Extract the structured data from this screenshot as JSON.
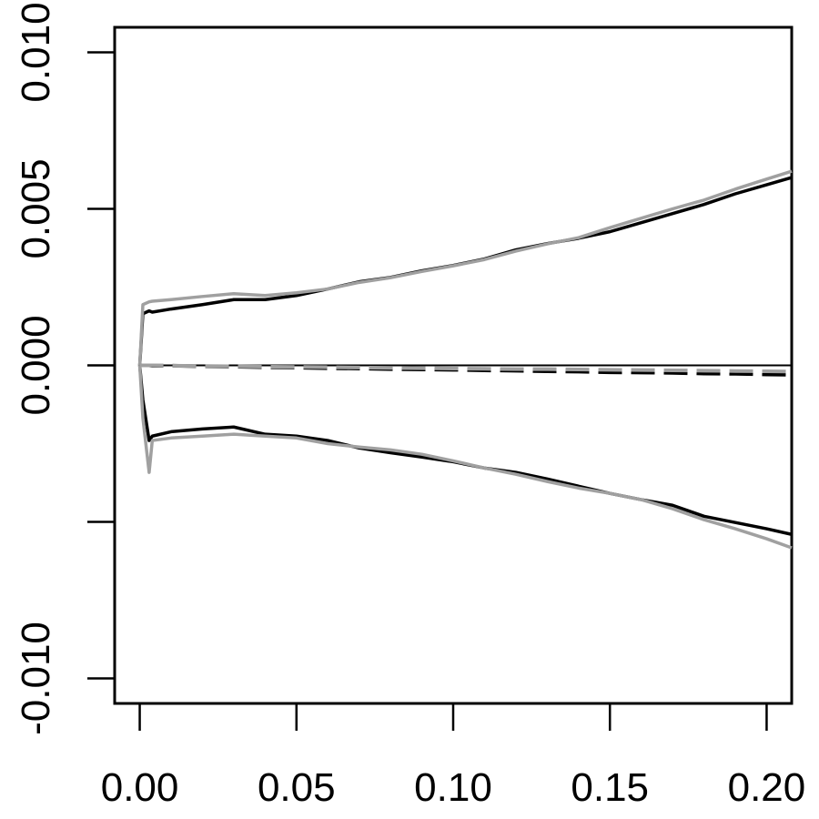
{
  "chart_data": {
    "type": "line",
    "x": [
      0,
      0.001,
      0.003,
      0.004,
      0.01,
      0.02,
      0.03,
      0.04,
      0.05,
      0.06,
      0.07,
      0.08,
      0.09,
      0.1,
      0.11,
      0.12,
      0.13,
      0.14,
      0.15,
      0.16,
      0.17,
      0.18,
      0.19,
      0.2,
      0.208
    ],
    "series": [
      {
        "color": "#000000",
        "dash": "solid",
        "values": [
          0,
          0.00165,
          0.00174,
          0.0017,
          0.0018,
          0.00194,
          0.0021,
          0.0021,
          0.00223,
          0.00244,
          0.00267,
          0.00281,
          0.00302,
          0.00319,
          0.0034,
          0.00369,
          0.00389,
          0.00406,
          0.00427,
          0.00456,
          0.00485,
          0.00514,
          0.00548,
          0.00577,
          0.006
        ]
      },
      {
        "color": "#a0a0a0",
        "dash": "solid",
        "values": [
          0,
          0.00194,
          0.00203,
          0.00205,
          0.0021,
          0.0022,
          0.00229,
          0.00223,
          0.00232,
          0.00244,
          0.00265,
          0.0028,
          0.003,
          0.00318,
          0.00338,
          0.00365,
          0.00388,
          0.00408,
          0.0044,
          0.0047,
          0.005,
          0.00528,
          0.00563,
          0.00595,
          0.0062
        ]
      },
      {
        "color": "#000000",
        "dash": "solid",
        "values": [
          0,
          -0.0011,
          -0.0024,
          -0.00226,
          -0.00212,
          -0.00203,
          -0.00197,
          -0.0022,
          -0.00226,
          -0.0024,
          -0.00264,
          -0.00279,
          -0.00293,
          -0.00308,
          -0.00328,
          -0.00342,
          -0.00363,
          -0.00386,
          -0.00409,
          -0.00429,
          -0.00447,
          -0.00482,
          -0.00502,
          -0.00522,
          -0.0054
        ]
      },
      {
        "color": "#a0a0a0",
        "dash": "solid",
        "values": [
          0,
          -0.00168,
          -0.00342,
          -0.0024,
          -0.00232,
          -0.00226,
          -0.0022,
          -0.00226,
          -0.00232,
          -0.0025,
          -0.00261,
          -0.0027,
          -0.00284,
          -0.00305,
          -0.00328,
          -0.00348,
          -0.00371,
          -0.00392,
          -0.00409,
          -0.00429,
          -0.00458,
          -0.00493,
          -0.00522,
          -0.00554,
          -0.00583
        ]
      },
      {
        "color": "#000000",
        "dash": "dashed",
        "values": [
          0,
          0,
          0,
          -1e-05,
          -1e-05,
          -3e-05,
          -4e-05,
          -6e-05,
          -7e-05,
          -9e-05,
          -0.0001,
          -0.00012,
          -0.00013,
          -0.00014,
          -0.00016,
          -0.00017,
          -0.00019,
          -0.0002,
          -0.00022,
          -0.00023,
          -0.00024,
          -0.00026,
          -0.00027,
          -0.00029,
          -0.0003
        ]
      },
      {
        "color": "#a0a0a0",
        "dash": "dashed",
        "values": [
          0,
          0,
          0,
          0,
          -1e-05,
          -2e-05,
          -3e-05,
          -4e-05,
          -5e-05,
          -6e-05,
          -7e-05,
          -8e-05,
          -9e-05,
          -0.0001,
          -0.00011,
          -0.00012,
          -0.00012,
          -0.00013,
          -0.00014,
          -0.00015,
          -0.00016,
          -0.00017,
          -0.00018,
          -0.00019,
          -0.0002
        ]
      }
    ],
    "hline": 0,
    "xlim": [
      -0.008,
      0.208
    ],
    "ylim": [
      -0.0108,
      0.0108
    ],
    "xticks": [
      {
        "value": 0,
        "label": "0.00"
      },
      {
        "value": 0.05,
        "label": "0.05"
      },
      {
        "value": 0.1,
        "label": "0.10"
      },
      {
        "value": 0.15,
        "label": "0.15"
      },
      {
        "value": 0.2,
        "label": "0.20"
      }
    ],
    "yticks": [
      {
        "value": -0.01,
        "label": "-0.010"
      },
      {
        "value": -0.005,
        "label": null
      },
      {
        "value": 0,
        "label": "0.000"
      },
      {
        "value": 0.005,
        "label": "0.005"
      },
      {
        "value": 0.01,
        "label": "0.010"
      }
    ]
  }
}
